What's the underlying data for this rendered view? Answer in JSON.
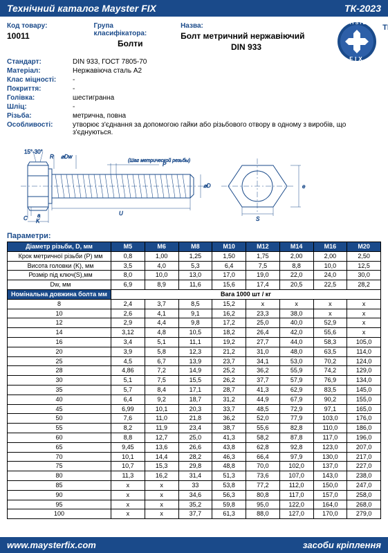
{
  "header": {
    "title_left": "Технічний каталог Mayster FIX",
    "title_right": "ТК-2023"
  },
  "top": {
    "code_label": "Код товару:",
    "code_value": "10011",
    "group_label": "Група класифікатора:",
    "group_value": "Болти",
    "name_label": "Назва:",
    "name_value_1": "Болт метричний нержавіючий",
    "name_value_2": "DIN 933"
  },
  "logo": {
    "top_text": "MAYSTER",
    "bottom_text": "FIX",
    "tm": "TM"
  },
  "specs": [
    {
      "key": "Стандарт:",
      "val": "DIN 933, ГОСТ 7805-70"
    },
    {
      "key": "Матеріал:",
      "val": "Нержавіюча сталь А2"
    },
    {
      "key": "Клас міцності:",
      "val": "-"
    },
    {
      "key": "Покриття:",
      "val": "-"
    },
    {
      "key": "Голівка:",
      "val": "шестигранна"
    },
    {
      "key": "Шліц:",
      "val": "-"
    },
    {
      "key": "Різьба:",
      "val": "метрична, повна"
    },
    {
      "key": "Особливості:",
      "val": "утворює з'єднання за допомогою гайки або різьбового отвору в одному з виробів, що з'єднуються."
    }
  ],
  "diagram_labels": {
    "angle": "15°-30°",
    "r": "R",
    "dw": "⌀Dw",
    "c": "C",
    "a": "a",
    "k": "K",
    "p": "P",
    "pitch": "(Шаг метрической резьбы)",
    "d": "⌀D",
    "u": "U",
    "s": "S",
    "e": "e"
  },
  "param_title": "Параметри:",
  "table": {
    "header_label": "Діаметр різьби, D, мм",
    "col_heads": [
      "M5",
      "M6",
      "M8",
      "M10",
      "M12",
      "M14",
      "M16",
      "M20"
    ],
    "param_rows": [
      {
        "label": "Крок метричної різьби (P) мм",
        "vals": [
          "0,8",
          "1,00",
          "1,25",
          "1,50",
          "1,75",
          "2,00",
          "2,00",
          "2,50"
        ]
      },
      {
        "label": "Висота головки (K), мм",
        "vals": [
          "3,5",
          "4,0",
          "5,3",
          "6,4",
          "7,5",
          "8,8",
          "10,0",
          "12,5"
        ]
      },
      {
        "label": "Розмір під ключ(S),мм",
        "vals": [
          "8,0",
          "10,0",
          "13,0",
          "17,0",
          "19,0",
          "22,0",
          "24,0",
          "30,0"
        ]
      },
      {
        "label": "Dw, мм",
        "vals": [
          "6,9",
          "8,9",
          "11,6",
          "15,6",
          "17,4",
          "20,5",
          "22,5",
          "28,2"
        ]
      }
    ],
    "length_header": "Номінальна довжина болта мм",
    "weight_header": "Вага 1000 шт / кг",
    "length_rows": [
      {
        "len": "8",
        "vals": [
          "2,4",
          "3,7",
          "8,5",
          "15,2",
          "x",
          "x",
          "x",
          "x"
        ]
      },
      {
        "len": "10",
        "vals": [
          "2,6",
          "4,1",
          "9,1",
          "16,2",
          "23,3",
          "38,0",
          "x",
          "x"
        ]
      },
      {
        "len": "12",
        "vals": [
          "2,9",
          "4,4",
          "9,8",
          "17,2",
          "25,0",
          "40,0",
          "52,9",
          "x"
        ]
      },
      {
        "len": "14",
        "vals": [
          "3,12",
          "4,8",
          "10,5",
          "18,2",
          "26,4",
          "42,0",
          "55,6",
          "x"
        ]
      },
      {
        "len": "16",
        "vals": [
          "3,4",
          "5,1",
          "11,1",
          "19,2",
          "27,7",
          "44,0",
          "58,3",
          "105,0"
        ]
      },
      {
        "len": "20",
        "vals": [
          "3,9",
          "5,8",
          "12,3",
          "21,2",
          "31,0",
          "48,0",
          "63,5",
          "114,0"
        ]
      },
      {
        "len": "25",
        "vals": [
          "4,5",
          "6,7",
          "13,9",
          "23,7",
          "34,1",
          "53,0",
          "70,2",
          "124,0"
        ]
      },
      {
        "len": "28",
        "vals": [
          "4,86",
          "7,2",
          "14,9",
          "25,2",
          "36,2",
          "55,9",
          "74,2",
          "129,0"
        ]
      },
      {
        "len": "30",
        "vals": [
          "5,1",
          "7,5",
          "15,5",
          "26,2",
          "37,7",
          "57,9",
          "76,9",
          "134,0"
        ]
      },
      {
        "len": "35",
        "vals": [
          "5,7",
          "8,4",
          "17,1",
          "28,7",
          "41,3",
          "62,9",
          "83,5",
          "145,0"
        ]
      },
      {
        "len": "40",
        "vals": [
          "6,4",
          "9,2",
          "18,7",
          "31,2",
          "44,9",
          "67,9",
          "90,2",
          "155,0"
        ]
      },
      {
        "len": "45",
        "vals": [
          "6,99",
          "10,1",
          "20,3",
          "33,7",
          "48,5",
          "72,9",
          "97,1",
          "165,0"
        ]
      },
      {
        "len": "50",
        "vals": [
          "7,6",
          "11,0",
          "21,8",
          "36,2",
          "52,0",
          "77,9",
          "103,0",
          "176,0"
        ]
      },
      {
        "len": "55",
        "vals": [
          "8,2",
          "11,9",
          "23,4",
          "38,7",
          "55,6",
          "82,8",
          "110,0",
          "186,0"
        ]
      },
      {
        "len": "60",
        "vals": [
          "8,8",
          "12,7",
          "25,0",
          "41,3",
          "58,2",
          "87,8",
          "117,0",
          "196,0"
        ]
      },
      {
        "len": "65",
        "vals": [
          "9,45",
          "13,6",
          "26,6",
          "43,8",
          "62,8",
          "92,8",
          "123,0",
          "207,0"
        ]
      },
      {
        "len": "70",
        "vals": [
          "10,1",
          "14,4",
          "28,2",
          "46,3",
          "66,4",
          "97,9",
          "130,0",
          "217,0"
        ]
      },
      {
        "len": "75",
        "vals": [
          "10,7",
          "15,3",
          "29,8",
          "48,8",
          "70,0",
          "102,0",
          "137,0",
          "227,0"
        ]
      },
      {
        "len": "80",
        "vals": [
          "11,3",
          "16,2",
          "31,4",
          "51,3",
          "73,6",
          "107,0",
          "143,0",
          "238,0"
        ]
      },
      {
        "len": "85",
        "vals": [
          "x",
          "x",
          "33",
          "53,8",
          "77,2",
          "112,0",
          "150,0",
          "247,0"
        ]
      },
      {
        "len": "90",
        "vals": [
          "x",
          "x",
          "34,6",
          "56,3",
          "80,8",
          "117,0",
          "157,0",
          "258,0"
        ]
      },
      {
        "len": "95",
        "vals": [
          "x",
          "x",
          "35,2",
          "59,8",
          "95,0",
          "122,0",
          "164,0",
          "268,0"
        ]
      },
      {
        "len": "100",
        "vals": [
          "x",
          "x",
          "37,7",
          "61,3",
          "88,0",
          "127,0",
          "170,0",
          "279,0"
        ]
      }
    ]
  },
  "footer": {
    "left": "www.maysterfix.com",
    "right": "засоби кріплення"
  },
  "colors": {
    "brand": "#1a4a8a",
    "bg": "#ffffff",
    "text": "#000000"
  }
}
